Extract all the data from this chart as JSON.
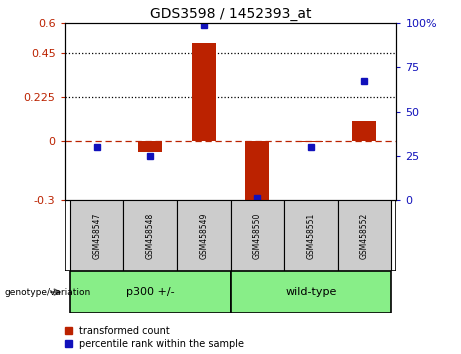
{
  "title": "GDS3598 / 1452393_at",
  "samples": [
    "GSM458547",
    "GSM458548",
    "GSM458549",
    "GSM458550",
    "GSM458551",
    "GSM458552"
  ],
  "red_bars": [
    0.002,
    -0.055,
    0.5,
    -0.3,
    -0.004,
    0.1
  ],
  "blue_pct": [
    30,
    25,
    99,
    1,
    30,
    67
  ],
  "ylim_left": [
    -0.3,
    0.6
  ],
  "yleft_ticks": [
    -0.3,
    0.0,
    0.225,
    0.45,
    0.6
  ],
  "yleft_labels": [
    "-0.3",
    "0",
    "0.225",
    "0.45",
    "0.6"
  ],
  "yright_ticks": [
    0,
    25,
    50,
    75,
    100
  ],
  "yright_labels": [
    "0",
    "25",
    "50",
    "75",
    "100%"
  ],
  "dotted_lines": [
    0.225,
    0.45
  ],
  "red_color": "#bb2200",
  "blue_color": "#1111bb",
  "green_color": "#88ee88",
  "gray_color": "#cccccc",
  "legend_red": "transformed count",
  "legend_blue": "percentile rank within the sample",
  "genotype_label": "genotype/variation",
  "group1_label": "p300 +/-",
  "group2_label": "wild-type",
  "bar_width": 0.45
}
